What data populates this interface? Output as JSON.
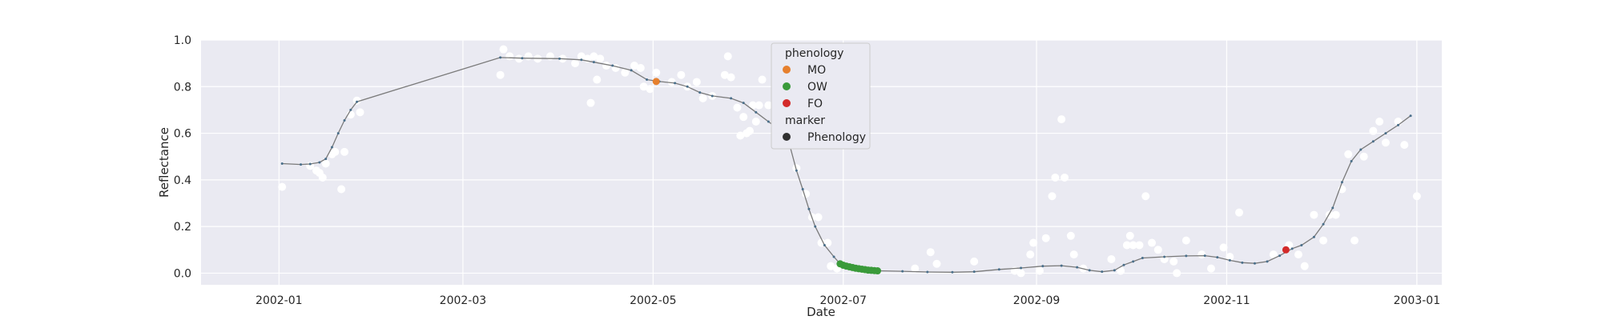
{
  "chart_data": {
    "type": "scatter",
    "xlabel": "Date",
    "ylabel": "Reflectance",
    "x_range": [
      "2001-12-07",
      "2003-01-09"
    ],
    "ylim": [
      -0.05,
      1.0
    ],
    "x_ticks": [
      "2002-01-01",
      "2002-03-01",
      "2002-05-01",
      "2002-07-01",
      "2002-09-01",
      "2002-11-01",
      "2003-01-01"
    ],
    "x_tick_labels": [
      "2002-01",
      "2002-03",
      "2002-05",
      "2002-07",
      "2002-09",
      "2002-11",
      "2003-01"
    ],
    "y_ticks": [
      0.0,
      0.2,
      0.4,
      0.6,
      0.8,
      1.0
    ],
    "y_tick_labels": [
      "0.0",
      "0.2",
      "0.4",
      "0.6",
      "0.8",
      "1.0"
    ],
    "grid": true,
    "legend_placement": "upper-center",
    "legend": {
      "phenology_title": "phenology",
      "marker_title": "marker",
      "entries": [
        {
          "label": "MO",
          "color": "#e6802e"
        },
        {
          "label": "OW",
          "color": "#3a9a3a"
        },
        {
          "label": "FO",
          "color": "#d32a2a"
        },
        {
          "label": "Phenology",
          "color": "#303030"
        }
      ]
    },
    "colors": {
      "background": "#eaeaf2",
      "grid": "#ffffff",
      "smoothed_line": "#4a6f8a",
      "observations": "#ffffff",
      "MO": "#e6802e",
      "OW": "#3a9a3a",
      "FO": "#d32a2a"
    },
    "smoothed_series": [
      [
        "2002-01-02",
        0.47
      ],
      [
        "2002-01-08",
        0.466
      ],
      [
        "2002-01-11",
        0.468
      ],
      [
        "2002-01-14",
        0.475
      ],
      [
        "2002-01-16",
        0.49
      ],
      [
        "2002-01-18",
        0.54
      ],
      [
        "2002-01-20",
        0.6
      ],
      [
        "2002-01-22",
        0.655
      ],
      [
        "2002-01-24",
        0.7
      ],
      [
        "2002-01-26",
        0.735
      ],
      [
        "2002-03-13",
        0.925
      ],
      [
        "2002-03-20",
        0.922
      ],
      [
        "2002-04-01",
        0.92
      ],
      [
        "2002-04-08",
        0.915
      ],
      [
        "2002-04-12",
        0.905
      ],
      [
        "2002-04-18",
        0.89
      ],
      [
        "2002-04-24",
        0.87
      ],
      [
        "2002-04-29",
        0.83
      ],
      [
        "2002-05-03",
        0.822
      ],
      [
        "2002-05-08",
        0.815
      ],
      [
        "2002-05-12",
        0.8
      ],
      [
        "2002-05-16",
        0.775
      ],
      [
        "2002-05-20",
        0.76
      ],
      [
        "2002-05-26",
        0.75
      ],
      [
        "2002-05-30",
        0.73
      ],
      [
        "2002-06-03",
        0.69
      ],
      [
        "2002-06-07",
        0.65
      ],
      [
        "2002-06-11",
        0.61
      ],
      [
        "2002-06-14",
        0.54
      ],
      [
        "2002-06-16",
        0.44
      ],
      [
        "2002-06-18",
        0.36
      ],
      [
        "2002-06-20",
        0.275
      ],
      [
        "2002-06-22",
        0.2
      ],
      [
        "2002-06-25",
        0.12
      ],
      [
        "2002-06-28",
        0.07
      ],
      [
        "2002-06-30",
        0.04
      ],
      [
        "2002-07-03",
        0.025
      ],
      [
        "2002-07-08",
        0.015
      ],
      [
        "2002-07-12",
        0.01
      ],
      [
        "2002-07-20",
        0.008
      ],
      [
        "2002-07-28",
        0.005
      ],
      [
        "2002-08-05",
        0.004
      ],
      [
        "2002-08-12",
        0.006
      ],
      [
        "2002-08-20",
        0.016
      ],
      [
        "2002-08-27",
        0.022
      ],
      [
        "2002-09-03",
        0.03
      ],
      [
        "2002-09-09",
        0.032
      ],
      [
        "2002-09-14",
        0.025
      ],
      [
        "2002-09-18",
        0.012
      ],
      [
        "2002-09-22",
        0.006
      ],
      [
        "2002-09-26",
        0.012
      ],
      [
        "2002-09-29",
        0.035
      ],
      [
        "2002-10-02",
        0.05
      ],
      [
        "2002-10-05",
        0.065
      ],
      [
        "2002-10-12",
        0.07
      ],
      [
        "2002-10-19",
        0.074
      ],
      [
        "2002-10-25",
        0.075
      ],
      [
        "2002-10-29",
        0.068
      ],
      [
        "2002-11-02",
        0.055
      ],
      [
        "2002-11-06",
        0.045
      ],
      [
        "2002-11-10",
        0.042
      ],
      [
        "2002-11-14",
        0.05
      ],
      [
        "2002-11-18",
        0.075
      ],
      [
        "2002-11-22",
        0.105
      ],
      [
        "2002-11-25",
        0.12
      ],
      [
        "2002-11-29",
        0.155
      ],
      [
        "2002-12-02",
        0.21
      ],
      [
        "2002-12-05",
        0.28
      ],
      [
        "2002-12-08",
        0.39
      ],
      [
        "2002-12-11",
        0.48
      ],
      [
        "2002-12-14",
        0.53
      ],
      [
        "2002-12-18",
        0.565
      ],
      [
        "2002-12-22",
        0.6
      ],
      [
        "2002-12-26",
        0.635
      ],
      [
        "2002-12-30",
        0.675
      ]
    ],
    "observations": [
      [
        "2002-01-02",
        0.37
      ],
      [
        "2002-01-11",
        0.46
      ],
      [
        "2002-01-13",
        0.44
      ],
      [
        "2002-01-14",
        0.43
      ],
      [
        "2002-01-15",
        0.41
      ],
      [
        "2002-01-16",
        0.47
      ],
      [
        "2002-01-18",
        0.51
      ],
      [
        "2002-01-19",
        0.52
      ],
      [
        "2002-01-21",
        0.36
      ],
      [
        "2002-01-22",
        0.52
      ],
      [
        "2002-01-24",
        0.68
      ],
      [
        "2002-01-26",
        0.74
      ],
      [
        "2002-01-27",
        0.69
      ],
      [
        "2002-03-13",
        0.85
      ],
      [
        "2002-03-14",
        0.96
      ],
      [
        "2002-03-16",
        0.93
      ],
      [
        "2002-03-19",
        0.92
      ],
      [
        "2002-03-22",
        0.93
      ],
      [
        "2002-03-25",
        0.92
      ],
      [
        "2002-03-29",
        0.93
      ],
      [
        "2002-04-02",
        0.92
      ],
      [
        "2002-04-06",
        0.9
      ],
      [
        "2002-04-08",
        0.93
      ],
      [
        "2002-04-10",
        0.92
      ],
      [
        "2002-04-11",
        0.73
      ],
      [
        "2002-04-12",
        0.93
      ],
      [
        "2002-04-13",
        0.83
      ],
      [
        "2002-04-14",
        0.92
      ],
      [
        "2002-04-16",
        0.89
      ],
      [
        "2002-04-19",
        0.88
      ],
      [
        "2002-04-22",
        0.86
      ],
      [
        "2002-04-25",
        0.89
      ],
      [
        "2002-04-27",
        0.88
      ],
      [
        "2002-04-28",
        0.8
      ],
      [
        "2002-04-30",
        0.79
      ],
      [
        "2002-05-02",
        0.86
      ],
      [
        "2002-05-07",
        0.82
      ],
      [
        "2002-05-10",
        0.85
      ],
      [
        "2002-05-12",
        0.8
      ],
      [
        "2002-05-15",
        0.82
      ],
      [
        "2002-05-17",
        0.75
      ],
      [
        "2002-05-20",
        0.76
      ],
      [
        "2002-05-24",
        0.85
      ],
      [
        "2002-05-25",
        0.93
      ],
      [
        "2002-05-26",
        0.84
      ],
      [
        "2002-05-28",
        0.71
      ],
      [
        "2002-05-29",
        0.59
      ],
      [
        "2002-05-30",
        0.67
      ],
      [
        "2002-05-31",
        0.6
      ],
      [
        "2002-06-01",
        0.61
      ],
      [
        "2002-06-02",
        0.72
      ],
      [
        "2002-06-03",
        0.65
      ],
      [
        "2002-06-04",
        0.72
      ],
      [
        "2002-06-05",
        0.83
      ],
      [
        "2002-06-07",
        0.72
      ],
      [
        "2002-06-09",
        0.63
      ],
      [
        "2002-06-12",
        0.57
      ],
      [
        "2002-06-13",
        0.55
      ],
      [
        "2002-06-16",
        0.45
      ],
      [
        "2002-06-19",
        0.34
      ],
      [
        "2002-06-21",
        0.24
      ],
      [
        "2002-06-23",
        0.24
      ],
      [
        "2002-06-24",
        0.13
      ],
      [
        "2002-06-26",
        0.13
      ],
      [
        "2002-06-27",
        0.03
      ],
      [
        "2002-06-29",
        0.02
      ],
      [
        "2002-07-24",
        0.02
      ],
      [
        "2002-07-29",
        0.09
      ],
      [
        "2002-07-31",
        0.04
      ],
      [
        "2002-08-12",
        0.05
      ],
      [
        "2002-08-25",
        0.01
      ],
      [
        "2002-08-27",
        0.0
      ],
      [
        "2002-08-30",
        0.08
      ],
      [
        "2002-08-31",
        0.13
      ],
      [
        "2002-09-02",
        0.01
      ],
      [
        "2002-09-04",
        0.15
      ],
      [
        "2002-09-06",
        0.33
      ],
      [
        "2002-09-07",
        0.41
      ],
      [
        "2002-09-09",
        0.66
      ],
      [
        "2002-09-10",
        0.41
      ],
      [
        "2002-09-12",
        0.16
      ],
      [
        "2002-09-13",
        0.08
      ],
      [
        "2002-09-16",
        0.02
      ],
      [
        "2002-09-25",
        0.06
      ],
      [
        "2002-09-28",
        0.01
      ],
      [
        "2002-09-30",
        0.12
      ],
      [
        "2002-10-01",
        0.16
      ],
      [
        "2002-10-02",
        0.12
      ],
      [
        "2002-10-04",
        0.12
      ],
      [
        "2002-10-06",
        0.33
      ],
      [
        "2002-10-08",
        0.13
      ],
      [
        "2002-10-10",
        0.1
      ],
      [
        "2002-10-12",
        0.06
      ],
      [
        "2002-10-15",
        0.05
      ],
      [
        "2002-10-16",
        0.0
      ],
      [
        "2002-10-19",
        0.14
      ],
      [
        "2002-10-24",
        0.08
      ],
      [
        "2002-10-27",
        0.02
      ],
      [
        "2002-10-31",
        0.11
      ],
      [
        "2002-11-02",
        0.07
      ],
      [
        "2002-11-05",
        0.26
      ],
      [
        "2002-11-16",
        0.08
      ],
      [
        "2002-11-21",
        0.12
      ],
      [
        "2002-11-24",
        0.08
      ],
      [
        "2002-11-26",
        0.03
      ],
      [
        "2002-11-29",
        0.25
      ],
      [
        "2002-12-02",
        0.14
      ],
      [
        "2002-12-04",
        0.25
      ],
      [
        "2002-12-06",
        0.25
      ],
      [
        "2002-12-08",
        0.36
      ],
      [
        "2002-12-10",
        0.51
      ],
      [
        "2002-12-12",
        0.14
      ],
      [
        "2002-12-15",
        0.5
      ],
      [
        "2002-12-18",
        0.61
      ],
      [
        "2002-12-20",
        0.65
      ],
      [
        "2002-12-22",
        0.56
      ],
      [
        "2002-12-26",
        0.65
      ],
      [
        "2002-12-28",
        0.55
      ],
      [
        "2003-01-01",
        0.33
      ]
    ],
    "phenology_points": {
      "MO": [
        [
          "2002-05-02",
          0.822
        ]
      ],
      "OW": [
        [
          "2002-06-30",
          0.04
        ],
        [
          "2002-07-01",
          0.034
        ],
        [
          "2002-07-02",
          0.03
        ],
        [
          "2002-07-03",
          0.027
        ],
        [
          "2002-07-04",
          0.024
        ],
        [
          "2002-07-05",
          0.021
        ],
        [
          "2002-07-06",
          0.019
        ],
        [
          "2002-07-07",
          0.017
        ],
        [
          "2002-07-08",
          0.015
        ],
        [
          "2002-07-09",
          0.013
        ],
        [
          "2002-07-10",
          0.012
        ],
        [
          "2002-07-11",
          0.011
        ],
        [
          "2002-07-12",
          0.01
        ]
      ],
      "FO": [
        [
          "2002-11-20",
          0.1
        ]
      ]
    }
  }
}
